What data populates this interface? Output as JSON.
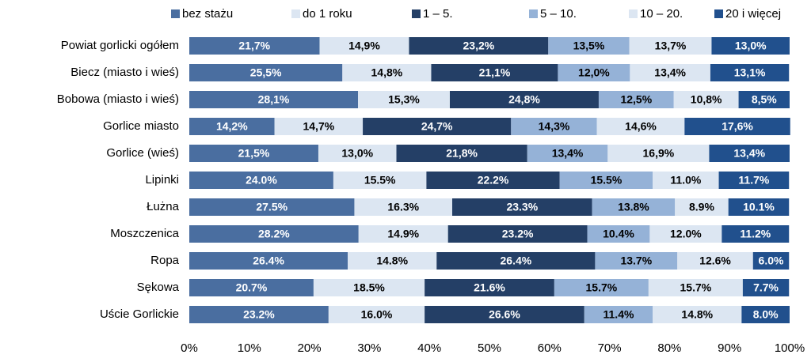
{
  "chart_data": {
    "type": "stacked-barh",
    "categories": [
      "Powiat gorlicki ogółem",
      "Biecz (miasto  i wieś)",
      "Bobowa (miasto  i wieś)",
      "Gorlice miasto",
      "Gorlice (wieś)",
      "Lipinki",
      "Łużna",
      "Moszczenica",
      "Ropa",
      "Sękowa",
      "Uście Gorlickie"
    ],
    "series": [
      {
        "name": "bez stażu",
        "color": "#4a6ea0",
        "values": [
          21.7,
          25.5,
          28.1,
          14.2,
          21.5,
          24.0,
          27.5,
          28.2,
          26.4,
          20.7,
          23.2
        ],
        "value_labels": [
          "21,7%",
          "25,5%",
          "28,1%",
          "14,2%",
          "21,5%",
          "24.0%",
          "27.5%",
          "28.2%",
          "26.4%",
          "20.7%",
          "23.2%"
        ]
      },
      {
        "name": "do 1 roku",
        "color": "#dce6f2",
        "values": [
          14.9,
          14.8,
          15.3,
          14.7,
          13.0,
          15.5,
          16.3,
          14.9,
          14.8,
          18.5,
          16.0
        ],
        "value_labels": [
          "14,9%",
          "14,8%",
          "15,3%",
          "14,7%",
          "13,0%",
          "15.5%",
          "16.3%",
          "14.9%",
          "14.8%",
          "18.5%",
          "16.0%"
        ]
      },
      {
        "name": "1 – 5.",
        "color": "#243f66",
        "values": [
          23.2,
          21.1,
          24.8,
          24.7,
          21.8,
          22.2,
          23.3,
          23.2,
          26.4,
          21.6,
          26.6
        ],
        "value_labels": [
          "23,2%",
          "21,1%",
          "24,8%",
          "24,7%",
          "21,8%",
          "22.2%",
          "23.3%",
          "23.2%",
          "26.4%",
          "21.6%",
          "26.6%"
        ]
      },
      {
        "name": "5 – 10.",
        "color": "#95b2d7",
        "values": [
          13.5,
          12.0,
          12.5,
          14.3,
          13.4,
          15.5,
          13.8,
          10.4,
          13.7,
          15.7,
          11.4
        ],
        "value_labels": [
          "13,5%",
          "12,0%",
          "12,5%",
          "14,3%",
          "13,4%",
          "15.5%",
          "13.8%",
          "10.4%",
          "13.7%",
          "15.7%",
          "11.4%"
        ]
      },
      {
        "name": "10 – 20.",
        "color": "#dce6f2",
        "values": [
          13.7,
          13.4,
          10.8,
          14.6,
          16.9,
          11.0,
          8.9,
          12.0,
          12.6,
          15.7,
          14.8
        ],
        "value_labels": [
          "13,7%",
          "13,4%",
          "10,8%",
          "14,6%",
          "16,9%",
          "11.0%",
          "8.9%",
          "12.0%",
          "12.6%",
          "15.7%",
          "14.8%"
        ]
      },
      {
        "name": "20 i więcej",
        "color": "#21508d",
        "values": [
          13.0,
          13.1,
          8.5,
          17.6,
          13.4,
          11.7,
          10.1,
          11.2,
          6.0,
          7.7,
          8.0
        ],
        "value_labels": [
          "13,0%",
          "13,1%",
          "8,5%",
          "17,6%",
          "13,4%",
          "11.7%",
          "10.1%",
          "11.2%",
          "6.0%",
          "7.7%",
          "8.0%"
        ]
      }
    ],
    "xlim": [
      0,
      100
    ],
    "xticks": [
      {
        "value": 0,
        "label": "0%"
      },
      {
        "value": 10,
        "label": "10%"
      },
      {
        "value": 20,
        "label": "20%"
      },
      {
        "value": 30,
        "label": "30%"
      },
      {
        "value": 40,
        "label": "40%"
      },
      {
        "value": 50,
        "label": "50%"
      },
      {
        "value": 60,
        "label": "60%"
      },
      {
        "value": 70,
        "label": "70%"
      },
      {
        "value": 80,
        "label": "80%"
      },
      {
        "value": 90,
        "label": "90%"
      },
      {
        "value": 100,
        "label": "100%"
      }
    ],
    "legend": "top"
  }
}
